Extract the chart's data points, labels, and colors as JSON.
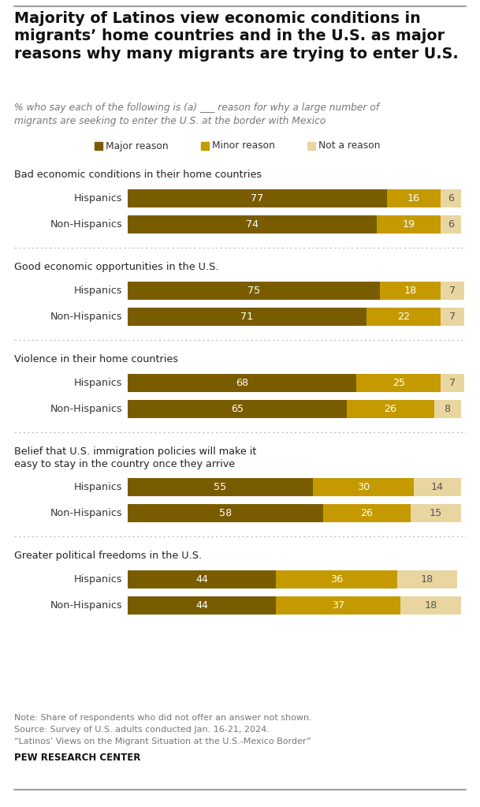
{
  "title": "Majority of Latinos view economic conditions in\nmigrants’ home countries and in the U.S. as major\nreasons why many migrants are trying to enter U.S.",
  "subtitle": "% who say each of the following is (a) ___ reason for why a large number of\nmigrants are seeking to enter the U.S. at the border with Mexico",
  "legend_labels": [
    "Major reason",
    "Minor reason",
    "Not a reason"
  ],
  "colors": [
    "#7a5c00",
    "#c49a00",
    "#e8d5a0"
  ],
  "groups": [
    {
      "label": "Bad economic conditions in their home countries",
      "label_lines": 1,
      "rows": [
        {
          "name": "Hispanics",
          "values": [
            77,
            16,
            6
          ]
        },
        {
          "name": "Non-Hispanics",
          "values": [
            74,
            19,
            6
          ]
        }
      ]
    },
    {
      "label": "Good economic opportunities in the U.S.",
      "label_lines": 1,
      "rows": [
        {
          "name": "Hispanics",
          "values": [
            75,
            18,
            7
          ]
        },
        {
          "name": "Non-Hispanics",
          "values": [
            71,
            22,
            7
          ]
        }
      ]
    },
    {
      "label": "Violence in their home countries",
      "label_lines": 1,
      "rows": [
        {
          "name": "Hispanics",
          "values": [
            68,
            25,
            7
          ]
        },
        {
          "name": "Non-Hispanics",
          "values": [
            65,
            26,
            8
          ]
        }
      ]
    },
    {
      "label": "Belief that U.S. immigration policies will make it\neasy to stay in the country once they arrive",
      "label_lines": 2,
      "rows": [
        {
          "name": "Hispanics",
          "values": [
            55,
            30,
            14
          ]
        },
        {
          "name": "Non-Hispanics",
          "values": [
            58,
            26,
            15
          ]
        }
      ]
    },
    {
      "label": "Greater political freedoms in the U.S.",
      "label_lines": 1,
      "rows": [
        {
          "name": "Hispanics",
          "values": [
            44,
            36,
            18
          ]
        },
        {
          "name": "Non-Hispanics",
          "values": [
            44,
            37,
            18
          ]
        }
      ]
    }
  ],
  "note_lines": [
    "Note: Share of respondents who did not offer an answer not shown.",
    "Source: Survey of U.S. adults conducted Jan. 16-21, 2024.",
    "“Latinos’ Views on the Migrant Situation at the U.S.-Mexico Border”"
  ],
  "source_bold": "PEW RESEARCH CENTER",
  "background_color": "#ffffff"
}
